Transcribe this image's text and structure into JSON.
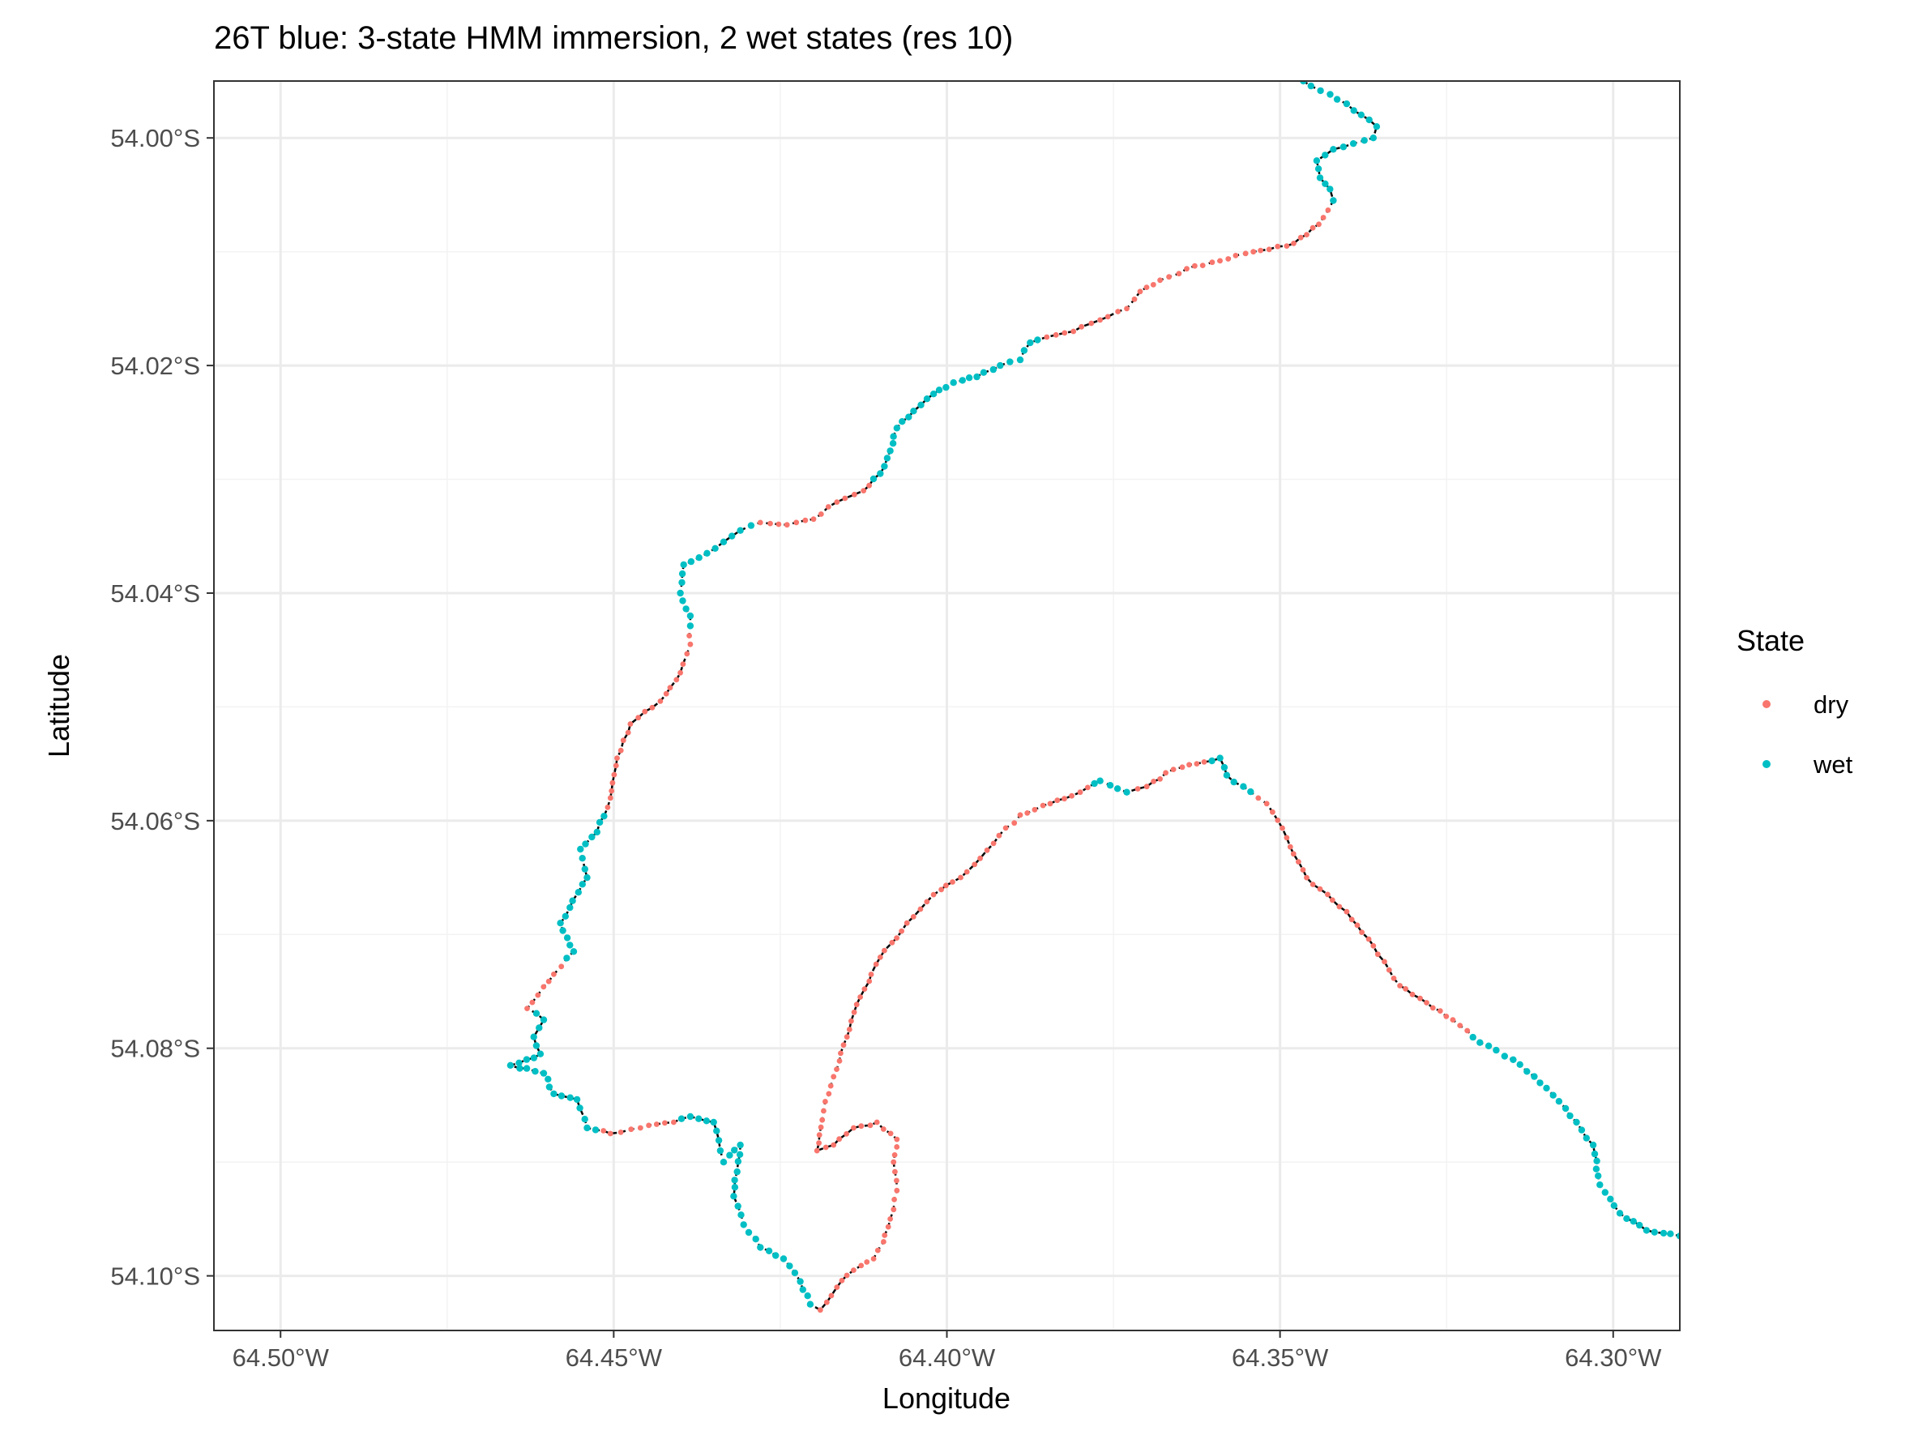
{
  "chart_data": {
    "type": "scatter",
    "title": "26T blue: 3-state HMM immersion, 2 wet states (res 10)",
    "xlabel": "Longitude",
    "ylabel": "Latitude",
    "xlim": [
      -64.51,
      -64.29
    ],
    "ylim": [
      -54.1048,
      -53.995
    ],
    "x_ticks": [
      {
        "value": -64.5,
        "label": "64.50°W"
      },
      {
        "value": -64.45,
        "label": "64.45°W"
      },
      {
        "value": -64.4,
        "label": "64.40°W"
      },
      {
        "value": -64.35,
        "label": "64.35°W"
      },
      {
        "value": -64.3,
        "label": "64.30°W"
      }
    ],
    "y_ticks": [
      {
        "value": -54.0,
        "label": "54.00°S"
      },
      {
        "value": -54.02,
        "label": "54.02°S"
      },
      {
        "value": -54.04,
        "label": "54.04°S"
      },
      {
        "value": -54.06,
        "label": "54.06°S"
      },
      {
        "value": -54.08,
        "label": "54.08°S"
      },
      {
        "value": -54.1,
        "label": "54.10°S"
      }
    ],
    "grid": true,
    "legend": {
      "title": "State",
      "position": "right"
    },
    "series": [
      {
        "name": "dry",
        "color": "#F8766D"
      },
      {
        "name": "wet",
        "color": "#00BFC4"
      }
    ],
    "track_color": "#000000",
    "track": [
      {
        "x": -64.3465,
        "y": -53.995,
        "state": "wet"
      },
      {
        "x": -64.34,
        "y": -53.997,
        "state": "wet"
      },
      {
        "x": -64.3355,
        "y": -53.999,
        "state": "wet"
      },
      {
        "x": -64.336,
        "y": -54.0,
        "state": "wet"
      },
      {
        "x": -64.339,
        "y": -54.0005,
        "state": "wet"
      },
      {
        "x": -64.342,
        "y": -54.001,
        "state": "wet"
      },
      {
        "x": -64.3445,
        "y": -54.002,
        "state": "wet"
      },
      {
        "x": -64.344,
        "y": -54.0035,
        "state": "wet"
      },
      {
        "x": -64.3425,
        "y": -54.0045,
        "state": "wet"
      },
      {
        "x": -64.342,
        "y": -54.0055,
        "state": "wet"
      },
      {
        "x": -64.3435,
        "y": -54.007,
        "state": "dry"
      },
      {
        "x": -64.346,
        "y": -54.0085,
        "state": "dry"
      },
      {
        "x": -64.349,
        "y": -54.0095,
        "state": "dry"
      },
      {
        "x": -64.354,
        "y": -54.01,
        "state": "dry"
      },
      {
        "x": -64.359,
        "y": -54.0108,
        "state": "dry"
      },
      {
        "x": -64.364,
        "y": -54.0115,
        "state": "dry"
      },
      {
        "x": -64.368,
        "y": -54.0125,
        "state": "dry"
      },
      {
        "x": -64.371,
        "y": -54.0135,
        "state": "dry"
      },
      {
        "x": -64.373,
        "y": -54.015,
        "state": "dry"
      },
      {
        "x": -64.377,
        "y": -54.016,
        "state": "dry"
      },
      {
        "x": -64.381,
        "y": -54.017,
        "state": "dry"
      },
      {
        "x": -64.385,
        "y": -54.0175,
        "state": "dry"
      },
      {
        "x": -64.3875,
        "y": -54.018,
        "state": "wet"
      },
      {
        "x": -64.389,
        "y": -54.0195,
        "state": "wet"
      },
      {
        "x": -64.392,
        "y": -54.02,
        "state": "wet"
      },
      {
        "x": -64.3955,
        "y": -54.021,
        "state": "wet"
      },
      {
        "x": -64.399,
        "y": -54.0215,
        "state": "wet"
      },
      {
        "x": -64.402,
        "y": -54.0225,
        "state": "wet"
      },
      {
        "x": -64.405,
        "y": -54.024,
        "state": "wet"
      },
      {
        "x": -64.4075,
        "y": -54.0255,
        "state": "wet"
      },
      {
        "x": -64.4085,
        "y": -54.0275,
        "state": "wet"
      },
      {
        "x": -64.41,
        "y": -54.0295,
        "state": "wet"
      },
      {
        "x": -64.4125,
        "y": -54.031,
        "state": "dry"
      },
      {
        "x": -64.4165,
        "y": -54.032,
        "state": "dry"
      },
      {
        "x": -64.42,
        "y": -54.0335,
        "state": "dry"
      },
      {
        "x": -64.424,
        "y": -54.034,
        "state": "dry"
      },
      {
        "x": -64.428,
        "y": -54.0338,
        "state": "dry"
      },
      {
        "x": -64.431,
        "y": -54.0345,
        "state": "wet"
      },
      {
        "x": -64.4335,
        "y": -54.0355,
        "state": "wet"
      },
      {
        "x": -64.436,
        "y": -54.0365,
        "state": "wet"
      },
      {
        "x": -64.4395,
        "y": -54.0375,
        "state": "wet"
      },
      {
        "x": -64.44,
        "y": -54.04,
        "state": "wet"
      },
      {
        "x": -64.4385,
        "y": -54.042,
        "state": "wet"
      },
      {
        "x": -64.4385,
        "y": -54.0445,
        "state": "dry"
      },
      {
        "x": -64.44,
        "y": -54.047,
        "state": "dry"
      },
      {
        "x": -64.443,
        "y": -54.0495,
        "state": "dry"
      },
      {
        "x": -64.4475,
        "y": -54.0515,
        "state": "dry"
      },
      {
        "x": -64.4495,
        "y": -54.0545,
        "state": "dry"
      },
      {
        "x": -64.4505,
        "y": -54.058,
        "state": "dry"
      },
      {
        "x": -64.4525,
        "y": -54.061,
        "state": "wet"
      },
      {
        "x": -64.455,
        "y": -54.0625,
        "state": "wet"
      },
      {
        "x": -64.454,
        "y": -54.065,
        "state": "wet"
      },
      {
        "x": -64.458,
        "y": -54.069,
        "state": "wet"
      },
      {
        "x": -64.456,
        "y": -54.0715,
        "state": "wet"
      },
      {
        "x": -64.459,
        "y": -54.0735,
        "state": "dry"
      },
      {
        "x": -64.463,
        "y": -54.0765,
        "state": "dry"
      },
      {
        "x": -64.4605,
        "y": -54.0775,
        "state": "wet"
      },
      {
        "x": -64.462,
        "y": -54.079,
        "state": "wet"
      },
      {
        "x": -64.461,
        "y": -54.0805,
        "state": "wet"
      },
      {
        "x": -64.4655,
        "y": -54.0815,
        "state": "wet"
      },
      {
        "x": -64.4605,
        "y": -54.0822,
        "state": "wet"
      },
      {
        "x": -64.459,
        "y": -54.084,
        "state": "wet"
      },
      {
        "x": -64.4555,
        "y": -54.0845,
        "state": "wet"
      },
      {
        "x": -64.454,
        "y": -54.087,
        "state": "wet"
      },
      {
        "x": -64.4505,
        "y": -54.0875,
        "state": "dry"
      },
      {
        "x": -64.446,
        "y": -54.087,
        "state": "dry"
      },
      {
        "x": -64.441,
        "y": -54.0865,
        "state": "dry"
      },
      {
        "x": -64.4385,
        "y": -54.086,
        "state": "wet"
      },
      {
        "x": -64.435,
        "y": -54.0865,
        "state": "wet"
      },
      {
        "x": -64.434,
        "y": -54.089,
        "state": "wet"
      },
      {
        "x": -64.4335,
        "y": -54.09,
        "state": "wet"
      },
      {
        "x": -64.431,
        "y": -54.0885,
        "state": "wet"
      },
      {
        "x": -64.432,
        "y": -54.093,
        "state": "wet"
      },
      {
        "x": -64.4305,
        "y": -54.0955,
        "state": "wet"
      },
      {
        "x": -64.428,
        "y": -54.0975,
        "state": "wet"
      },
      {
        "x": -64.4245,
        "y": -54.0985,
        "state": "wet"
      },
      {
        "x": -64.422,
        "y": -54.1005,
        "state": "wet"
      },
      {
        "x": -64.4205,
        "y": -54.1025,
        "state": "wet"
      },
      {
        "x": -64.419,
        "y": -54.103,
        "state": "dry"
      },
      {
        "x": -64.4165,
        "y": -54.101,
        "state": "dry"
      },
      {
        "x": -64.414,
        "y": -54.0995,
        "state": "dry"
      },
      {
        "x": -64.411,
        "y": -54.0985,
        "state": "dry"
      },
      {
        "x": -64.4095,
        "y": -54.097,
        "state": "dry"
      },
      {
        "x": -64.4085,
        "y": -54.095,
        "state": "dry"
      },
      {
        "x": -64.4075,
        "y": -54.0925,
        "state": "dry"
      },
      {
        "x": -64.408,
        "y": -54.09,
        "state": "dry"
      },
      {
        "x": -64.4075,
        "y": -54.088,
        "state": "dry"
      },
      {
        "x": -64.4105,
        "y": -54.0865,
        "state": "dry"
      },
      {
        "x": -64.414,
        "y": -54.087,
        "state": "dry"
      },
      {
        "x": -64.417,
        "y": -54.0885,
        "state": "dry"
      },
      {
        "x": -64.4195,
        "y": -54.089,
        "state": "dry"
      },
      {
        "x": -64.4185,
        "y": -54.0855,
        "state": "dry"
      },
      {
        "x": -64.417,
        "y": -54.0825,
        "state": "dry"
      },
      {
        "x": -64.415,
        "y": -54.079,
        "state": "dry"
      },
      {
        "x": -64.413,
        "y": -54.0755,
        "state": "dry"
      },
      {
        "x": -64.41,
        "y": -54.072,
        "state": "dry"
      },
      {
        "x": -64.406,
        "y": -54.069,
        "state": "dry"
      },
      {
        "x": -64.402,
        "y": -54.0665,
        "state": "dry"
      },
      {
        "x": -64.397,
        "y": -54.0645,
        "state": "dry"
      },
      {
        "x": -64.393,
        "y": -54.062,
        "state": "dry"
      },
      {
        "x": -64.389,
        "y": -54.0595,
        "state": "dry"
      },
      {
        "x": -64.3845,
        "y": -54.0585,
        "state": "dry"
      },
      {
        "x": -64.38,
        "y": -54.0575,
        "state": "dry"
      },
      {
        "x": -64.377,
        "y": -54.0565,
        "state": "wet"
      },
      {
        "x": -64.373,
        "y": -54.0575,
        "state": "wet"
      },
      {
        "x": -64.37,
        "y": -54.057,
        "state": "dry"
      },
      {
        "x": -64.366,
        "y": -54.0555,
        "state": "dry"
      },
      {
        "x": -64.3625,
        "y": -54.055,
        "state": "dry"
      },
      {
        "x": -64.359,
        "y": -54.0545,
        "state": "wet"
      },
      {
        "x": -64.358,
        "y": -54.056,
        "state": "wet"
      },
      {
        "x": -64.3555,
        "y": -54.057,
        "state": "wet"
      },
      {
        "x": -64.352,
        "y": -54.0585,
        "state": "dry"
      },
      {
        "x": -64.349,
        "y": -54.0615,
        "state": "dry"
      },
      {
        "x": -64.346,
        "y": -54.065,
        "state": "dry"
      },
      {
        "x": -64.34,
        "y": -54.068,
        "state": "dry"
      },
      {
        "x": -64.336,
        "y": -54.071,
        "state": "dry"
      },
      {
        "x": -64.332,
        "y": -54.0745,
        "state": "dry"
      },
      {
        "x": -64.328,
        "y": -54.076,
        "state": "dry"
      },
      {
        "x": -64.323,
        "y": -54.078,
        "state": "dry"
      },
      {
        "x": -64.32,
        "y": -54.0795,
        "state": "wet"
      },
      {
        "x": -64.315,
        "y": -54.081,
        "state": "wet"
      },
      {
        "x": -64.31,
        "y": -54.0835,
        "state": "wet"
      },
      {
        "x": -64.3055,
        "y": -54.0865,
        "state": "wet"
      },
      {
        "x": -64.303,
        "y": -54.0885,
        "state": "wet"
      },
      {
        "x": -64.302,
        "y": -54.092,
        "state": "wet"
      },
      {
        "x": -64.299,
        "y": -54.0945,
        "state": "wet"
      },
      {
        "x": -64.295,
        "y": -54.096,
        "state": "wet"
      },
      {
        "x": -64.29,
        "y": -54.0965,
        "state": "wet"
      }
    ]
  }
}
